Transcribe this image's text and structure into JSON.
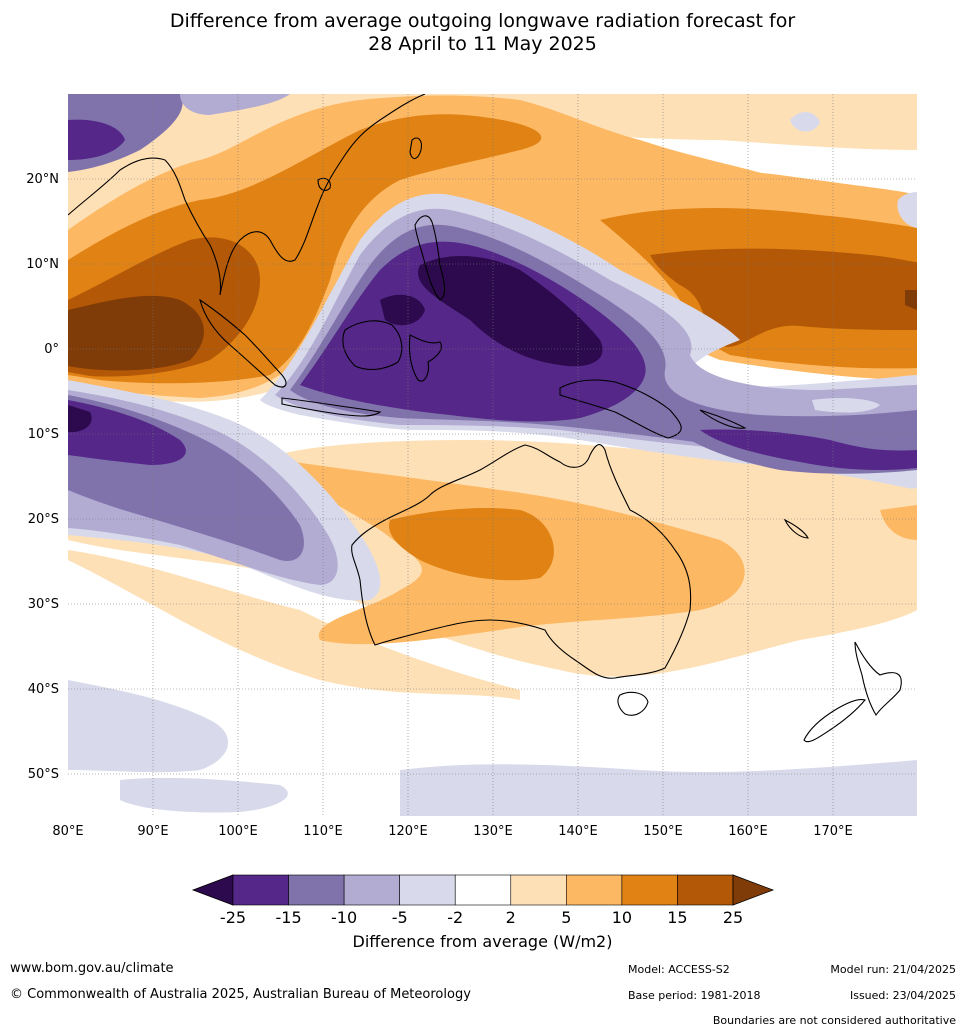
{
  "title_line1": "Difference from average outgoing longwave radiation forecast for",
  "title_line2": "28 April to 11 May 2025",
  "lat_labels": [
    "20°N",
    "10°N",
    "0°",
    "10°S",
    "20°S",
    "30°S",
    "40°S",
    "50°S"
  ],
  "lon_labels": [
    "80°E",
    "90°E",
    "100°E",
    "110°E",
    "120°E",
    "130°E",
    "140°E",
    "150°E",
    "160°E",
    "170°E"
  ],
  "colorbar": {
    "title": "Difference from average (W/m2)",
    "ticks": [
      "-25",
      "-15",
      "-10",
      "-5",
      "-2",
      "2",
      "5",
      "10",
      "15",
      "25"
    ],
    "colors": [
      "#2d0a4e",
      "#542788",
      "#8073ac",
      "#b2abd2",
      "#d8daeb",
      "#ffffff",
      "#fee0b6",
      "#fdb863",
      "#e08214",
      "#b35806",
      "#7f3b08"
    ]
  },
  "footer": {
    "url": "www.bom.gov.au/climate",
    "copyright": "© Commonwealth of Australia 2025, Australian Bureau of Meteorology",
    "model": "Model: ACCESS-S2",
    "base_period": "Base period: 1981-2018",
    "model_run": "Model run: 21/04/2025",
    "issued": "Issued: 23/04/2025",
    "disclaimer": "Boundaries are not considered authoritative"
  }
}
